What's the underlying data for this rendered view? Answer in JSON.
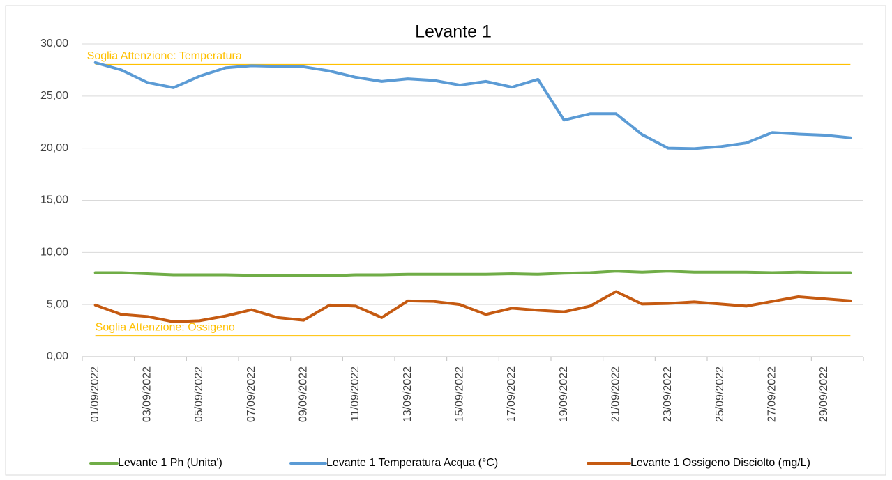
{
  "chart_data": {
    "type": "line",
    "title": "Levante 1",
    "categories": [
      "01/09/2022",
      null,
      "03/09/2022",
      null,
      "05/09/2022",
      null,
      "07/09/2022",
      null,
      "09/09/2022",
      null,
      "11/09/2022",
      null,
      "13/09/2022",
      null,
      "15/09/2022",
      null,
      "17/09/2022",
      null,
      "19/09/2022",
      null,
      "21/09/2022",
      null,
      "23/09/2022",
      null,
      "25/09/2022",
      null,
      "27/09/2022",
      null,
      "29/09/2022",
      null
    ],
    "series": [
      {
        "name": "Levante 1 Ph (Unita')",
        "color": "#70ad47",
        "values": [
          8.05,
          8.05,
          7.95,
          7.85,
          7.85,
          7.85,
          7.8,
          7.75,
          7.75,
          7.75,
          7.85,
          7.85,
          7.9,
          7.9,
          7.9,
          7.9,
          7.95,
          7.9,
          8.0,
          8.05,
          8.2,
          8.1,
          8.2,
          8.1,
          8.1,
          8.1,
          8.05,
          8.1,
          8.05,
          8.05
        ]
      },
      {
        "name": "Levante 1 Temperatura Acqua (°C)",
        "color": "#5b9bd5",
        "values": [
          28.2,
          27.5,
          26.3,
          25.8,
          26.9,
          27.7,
          27.9,
          27.85,
          27.8,
          27.4,
          26.8,
          26.4,
          26.65,
          26.5,
          26.05,
          26.4,
          25.85,
          26.6,
          22.7,
          23.3,
          23.3,
          21.3,
          20.0,
          19.95,
          20.15,
          20.5,
          21.5,
          21.35,
          21.25,
          21.0
        ]
      },
      {
        "name": "Levante 1 Ossigeno Disciolto (mg/L)",
        "color": "#c55a11",
        "values": [
          4.95,
          4.05,
          3.85,
          3.35,
          3.45,
          3.9,
          4.5,
          3.75,
          3.5,
          4.95,
          4.85,
          3.75,
          5.35,
          5.3,
          5.0,
          4.05,
          4.65,
          4.45,
          4.3,
          4.85,
          6.25,
          5.05,
          5.1,
          5.25,
          5.05,
          4.85,
          5.3,
          5.75,
          5.55,
          5.35
        ]
      }
    ],
    "reference_lines": [
      {
        "label": "Soglia Attenzione: Temperatura",
        "value": 28,
        "color": "#ffc000"
      },
      {
        "label": "Soglia Attenzione: Ossigeno",
        "value": 2,
        "color": "#ffc000"
      }
    ],
    "ylim": [
      0,
      30
    ],
    "yticks": [
      {
        "value": 0,
        "label": "0,00"
      },
      {
        "value": 5,
        "label": "5,00"
      },
      {
        "value": 10,
        "label": "10,00"
      },
      {
        "value": 15,
        "label": "15,00"
      },
      {
        "value": 20,
        "label": "20,00"
      },
      {
        "value": 25,
        "label": "25,00"
      },
      {
        "value": 30,
        "label": "30,00"
      }
    ],
    "grid": true,
    "legend": "bottom"
  }
}
